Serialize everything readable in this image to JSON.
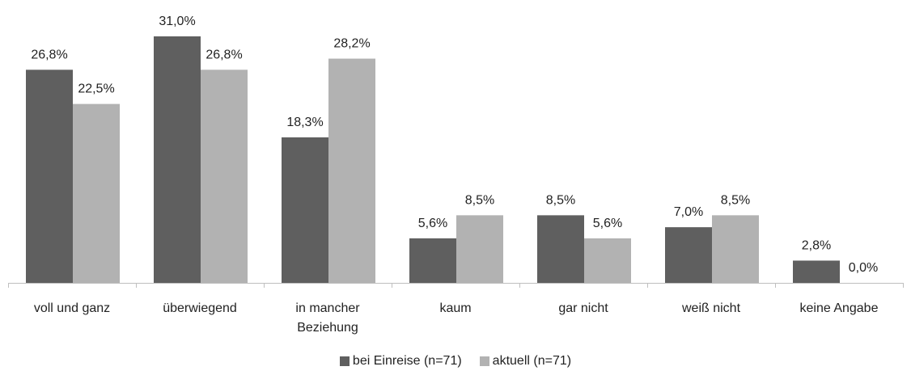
{
  "chart_data": {
    "type": "bar",
    "categories": [
      "voll und ganz",
      "überwiegend",
      "in mancher Beziehung",
      "kaum",
      "gar nicht",
      "weiß nicht",
      "keine Angabe"
    ],
    "series": [
      {
        "name": "bei Einreise (n=71)",
        "color": "#5f5f5f",
        "values": [
          26.8,
          31.0,
          18.3,
          5.6,
          8.5,
          7.0,
          2.8
        ],
        "value_labels": [
          "26,8%",
          "31,0%",
          "18,3%",
          "5,6%",
          "8,5%",
          "7,0%",
          "2,8%"
        ]
      },
      {
        "name": "aktuell (n=71)",
        "color": "#b2b2b2",
        "values": [
          22.5,
          26.8,
          28.2,
          8.5,
          5.6,
          8.5,
          0.0
        ],
        "value_labels": [
          "22,5%",
          "26,8%",
          "28,2%",
          "8,5%",
          "5,6%",
          "8,5%",
          "0,0%"
        ]
      }
    ],
    "legend": "bottom"
  }
}
